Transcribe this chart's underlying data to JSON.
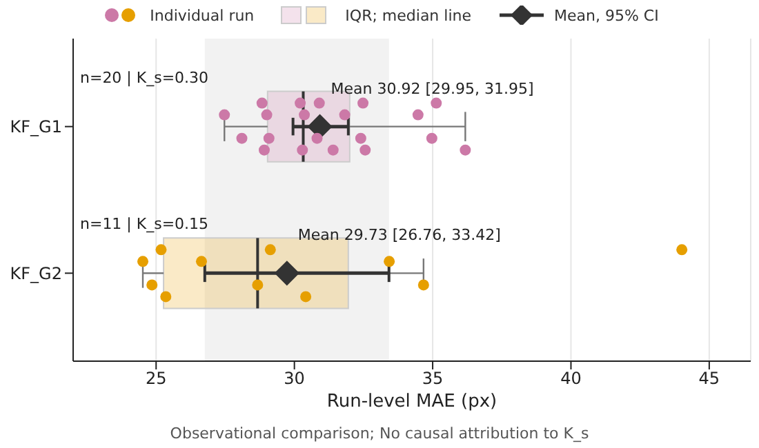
{
  "chart_data": {
    "type": "box",
    "orientation": "horizontal",
    "xlabel": "Run-level MAE (px)",
    "categories": [
      "KF_G1",
      "KF_G2"
    ],
    "xlim": [
      22,
      46.5
    ],
    "xticks": [
      25,
      30,
      35,
      40,
      45
    ],
    "grid": "x",
    "legend": "top",
    "bands": [
      {
        "axis": "x",
        "from": 26.76,
        "to": 33.42,
        "color": "#f2f2f2"
      }
    ],
    "series": [
      {
        "name": "Individual run",
        "type": "scatter",
        "marker": "circle",
        "color": "#808080",
        "x": [
          "KF_G1",
          "KF_G1",
          "KF_G1",
          "KF_G1",
          "KF_G1",
          "KF_G1",
          "KF_G1",
          "KF_G1",
          "KF_G1",
          "KF_G1",
          "KF_G1",
          "KF_G1",
          "KF_G1",
          "KF_G1",
          "KF_G1",
          "KF_G1",
          "KF_G1",
          "KF_G1",
          "KF_G1",
          "KF_G1",
          "KF_G2",
          "KF_G2",
          "KF_G2",
          "KF_G2",
          "KF_G2",
          "KF_G2",
          "KF_G2",
          "KF_G2",
          "KF_G2",
          "KF_G2",
          "KF_G2"
        ],
        "values": [
          27.47,
          28.1,
          28.83,
          28.91,
          29.0,
          29.08,
          30.21,
          30.29,
          30.36,
          30.82,
          30.9,
          31.4,
          31.82,
          32.4,
          32.48,
          32.56,
          34.47,
          34.97,
          35.13,
          36.18,
          24.52,
          24.85,
          25.18,
          25.35,
          26.64,
          28.67,
          29.13,
          30.41,
          33.43,
          34.67,
          44.01
        ],
        "colors": [
          "#cc79a7",
          "#cc79a7",
          "#cc79a7",
          "#cc79a7",
          "#cc79a7",
          "#cc79a7",
          "#cc79a7",
          "#cc79a7",
          "#cc79a7",
          "#cc79a7",
          "#cc79a7",
          "#cc79a7",
          "#cc79a7",
          "#cc79a7",
          "#cc79a7",
          "#cc79a7",
          "#cc79a7",
          "#cc79a7",
          "#cc79a7",
          "#cc79a7",
          "#e69f00",
          "#e69f00",
          "#e69f00",
          "#e69f00",
          "#e69f00",
          "#e69f00",
          "#e69f00",
          "#e69f00",
          "#e69f00",
          "#e69f00",
          "#e69f00"
        ]
      },
      {
        "name": "IQR; median line",
        "type": "box",
        "colors": [
          "#cc79a7",
          "#e69f00"
        ],
        "boxes": [
          {
            "low": 27.47,
            "q1": 29.03,
            "median": 30.32,
            "q3": 32.0,
            "high": 36.18
          },
          {
            "low": 24.52,
            "q1": 25.27,
            "median": 28.67,
            "q3": 31.95,
            "high": 34.67
          }
        ]
      },
      {
        "name": "Mean, 95% CI",
        "type": "scatter",
        "marker": "diamond",
        "color": "#333333",
        "x": [
          "KF_G1",
          "KF_G2"
        ],
        "values": [
          30.92,
          29.73
        ],
        "errors": [
          [
            29.95,
            31.95
          ],
          [
            26.76,
            33.42
          ]
        ],
        "value_labels": [
          "Mean 30.92 [29.95, 31.95]",
          "Mean 29.73 [26.76, 33.42]"
        ]
      }
    ],
    "annotations": [
      "n=20 | K_s=0.30",
      "n=11 | K_s=0.15",
      "Observational comparison; No causal attribution to K_s"
    ]
  }
}
